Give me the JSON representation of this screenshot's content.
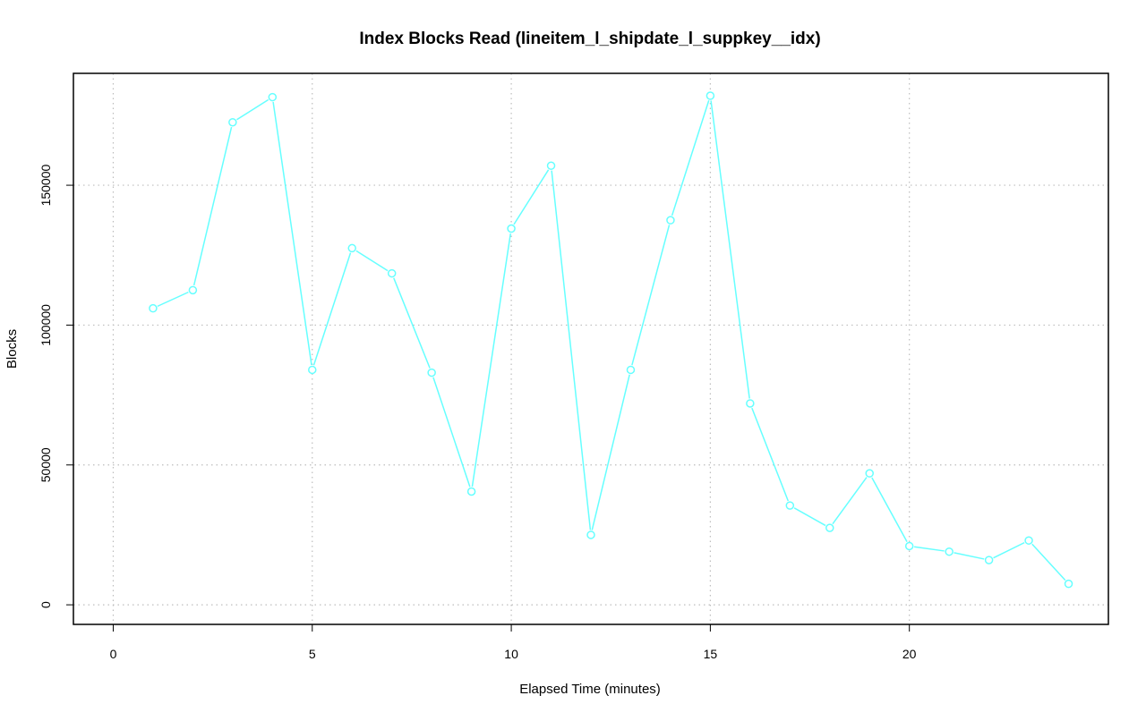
{
  "chart_data": {
    "type": "line",
    "title": "Index Blocks Read (lineitem_l_shipdate_l_suppkey__idx)",
    "xlabel": "Elapsed Time (minutes)",
    "ylabel": "Blocks",
    "xlim": [
      -1,
      25
    ],
    "ylim": [
      -7000,
      190000
    ],
    "x_ticks": [
      0,
      5,
      10,
      15,
      20
    ],
    "y_ticks": [
      0,
      50000,
      100000,
      150000
    ],
    "grid": true,
    "series": [
      {
        "color": "#66ffff",
        "x": [
          1,
          2,
          3,
          4,
          5,
          6,
          7,
          8,
          9,
          10,
          11,
          12,
          13,
          14,
          15,
          16,
          17,
          18,
          19,
          20,
          21,
          22,
          23,
          24
        ],
        "y": [
          106000,
          112500,
          172500,
          181500,
          84000,
          127500,
          118500,
          83000,
          40500,
          134500,
          157000,
          25000,
          84000,
          137500,
          182000,
          72000,
          35500,
          27500,
          47000,
          21000,
          19000,
          16000,
          23000,
          7500
        ]
      }
    ]
  }
}
